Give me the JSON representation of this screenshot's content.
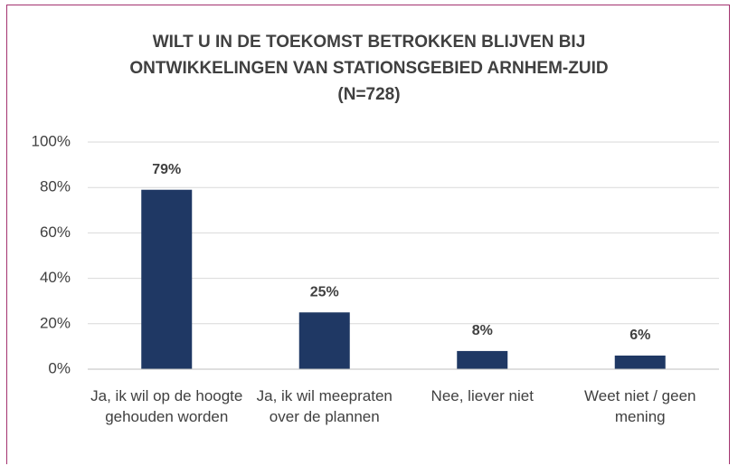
{
  "chart_data": {
    "type": "bar",
    "title": "WILT U IN DE TOEKOMST BETROKKEN BLIJVEN BIJ\nONTWIKKELINGEN VAN STATIONSGEBIED ARNHEM-ZUID\n(N=728)",
    "categories": [
      "Ja, ik wil op de hoogte gehouden worden",
      "Ja, ik wil meepraten over de plannen",
      "Nee, liever niet",
      "Weet niet / geen mening"
    ],
    "values": [
      79,
      25,
      8,
      6
    ],
    "value_labels": [
      "79%",
      "25%",
      "8%",
      "6%"
    ],
    "color": "#1f3864",
    "ylim": [
      0,
      100
    ],
    "yticks": [
      {
        "value": 0,
        "label": "0%"
      },
      {
        "value": 20,
        "label": "20%"
      },
      {
        "value": 40,
        "label": "40%"
      },
      {
        "value": 60,
        "label": "60%"
      },
      {
        "value": 80,
        "label": "80%"
      },
      {
        "value": 100,
        "label": "100%"
      }
    ],
    "grid": true
  }
}
